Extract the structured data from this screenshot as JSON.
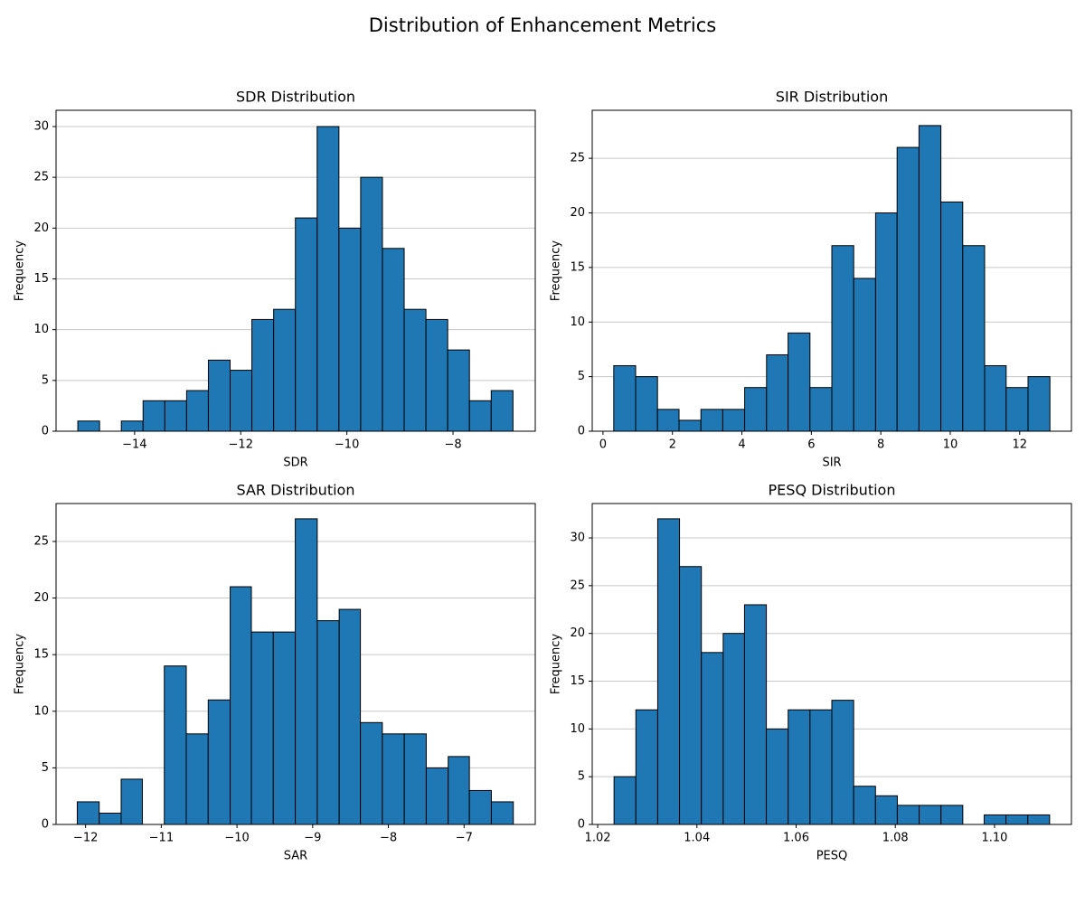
{
  "title": "Distribution of Enhancement Metrics",
  "chart_data": [
    {
      "type": "histogram",
      "title": "SDR Distribution",
      "xlabel": "SDR",
      "ylabel": "Frequency",
      "bins": [
        -15.07,
        -14.66,
        -14.25,
        -13.84,
        -13.43,
        -13.02,
        -12.61,
        -12.2,
        -11.79,
        -11.38,
        -10.97,
        -10.56,
        -10.15,
        -9.74,
        -9.33,
        -8.92,
        -8.51,
        -8.1,
        -7.69,
        -7.28,
        -6.87
      ],
      "values": [
        1,
        0,
        1,
        3,
        3,
        4,
        7,
        6,
        11,
        12,
        21,
        30,
        20,
        25,
        18,
        12,
        11,
        8,
        3,
        4
      ],
      "color": "#1f77b4",
      "edgecolor": "#000000",
      "xlim": [
        -15.48,
        -6.45
      ],
      "ylim": [
        0,
        31.6
      ],
      "xticks": [
        {
          "value": -14,
          "label": "−14"
        },
        {
          "value": -12,
          "label": "−12"
        },
        {
          "value": -10,
          "label": "−10"
        },
        {
          "value": -8,
          "label": "−8"
        }
      ],
      "yticks": [
        0,
        5,
        10,
        15,
        20,
        25,
        30
      ],
      "grid": "y"
    },
    {
      "type": "histogram",
      "title": "SIR Distribution",
      "xlabel": "SIR",
      "ylabel": "Frequency",
      "bins": [
        0.31,
        0.94,
        1.57,
        2.19,
        2.82,
        3.45,
        4.08,
        4.71,
        5.33,
        5.96,
        6.59,
        7.22,
        7.85,
        8.47,
        9.1,
        9.73,
        10.36,
        10.99,
        11.61,
        12.24,
        12.87
      ],
      "values": [
        6,
        5,
        2,
        1,
        2,
        2,
        4,
        7,
        9,
        4,
        17,
        14,
        20,
        26,
        28,
        21,
        17,
        6,
        4,
        5
      ],
      "color": "#1f77b4",
      "edgecolor": "#000000",
      "xlim": [
        -0.31,
        13.49
      ],
      "ylim": [
        0,
        29.4
      ],
      "xticks": [
        0,
        2,
        4,
        6,
        8,
        10,
        12
      ],
      "yticks": [
        0,
        5,
        10,
        15,
        20,
        25
      ],
      "grid": "y"
    },
    {
      "type": "histogram",
      "title": "SAR Distribution",
      "xlabel": "SAR",
      "ylabel": "Frequency",
      "bins": [
        -12.11,
        -11.82,
        -11.53,
        -11.25,
        -10.96,
        -10.67,
        -10.38,
        -10.09,
        -9.81,
        -9.52,
        -9.23,
        -8.94,
        -8.65,
        -8.37,
        -8.08,
        -7.79,
        -7.5,
        -7.21,
        -6.93,
        -6.64,
        -6.35
      ],
      "values": [
        2,
        1,
        4,
        0,
        14,
        8,
        11,
        21,
        17,
        17,
        27,
        18,
        19,
        9,
        8,
        8,
        5,
        6,
        3,
        2
      ],
      "color": "#1f77b4",
      "edgecolor": "#000000",
      "xlim": [
        -12.39,
        -6.06
      ],
      "ylim": [
        0,
        28.35
      ],
      "xticks": [
        {
          "value": -12,
          "label": "−12"
        },
        {
          "value": -11,
          "label": "−11"
        },
        {
          "value": -10,
          "label": "−10"
        },
        {
          "value": -9,
          "label": "−9"
        },
        {
          "value": -8,
          "label": "−8"
        },
        {
          "value": -7,
          "label": "−7"
        }
      ],
      "yticks": [
        0,
        5,
        10,
        15,
        20,
        25
      ],
      "grid": "y"
    },
    {
      "type": "histogram",
      "title": "PESQ Distribution",
      "xlabel": "PESQ",
      "ylabel": "Frequency",
      "bins": [
        1.0233,
        1.0277,
        1.0321,
        1.0365,
        1.0409,
        1.0453,
        1.0496,
        1.054,
        1.0584,
        1.0628,
        1.0672,
        1.0716,
        1.076,
        1.0804,
        1.0848,
        1.0892,
        1.0936,
        1.0979,
        1.1023,
        1.1067,
        1.1111
      ],
      "values": [
        5,
        12,
        32,
        27,
        18,
        20,
        23,
        10,
        12,
        12,
        13,
        4,
        3,
        2,
        2,
        2,
        0,
        1,
        1,
        1
      ],
      "color": "#1f77b4",
      "edgecolor": "#000000",
      "xlim": [
        1.0189,
        1.1155
      ],
      "ylim": [
        0,
        33.6
      ],
      "xticks": [
        {
          "value": 1.02,
          "label": "1.02"
        },
        {
          "value": 1.04,
          "label": "1.04"
        },
        {
          "value": 1.06,
          "label": "1.06"
        },
        {
          "value": 1.08,
          "label": "1.08"
        },
        {
          "value": 1.1,
          "label": "1.10"
        }
      ],
      "yticks": [
        0,
        5,
        10,
        15,
        20,
        25,
        30
      ],
      "grid": "y"
    }
  ]
}
